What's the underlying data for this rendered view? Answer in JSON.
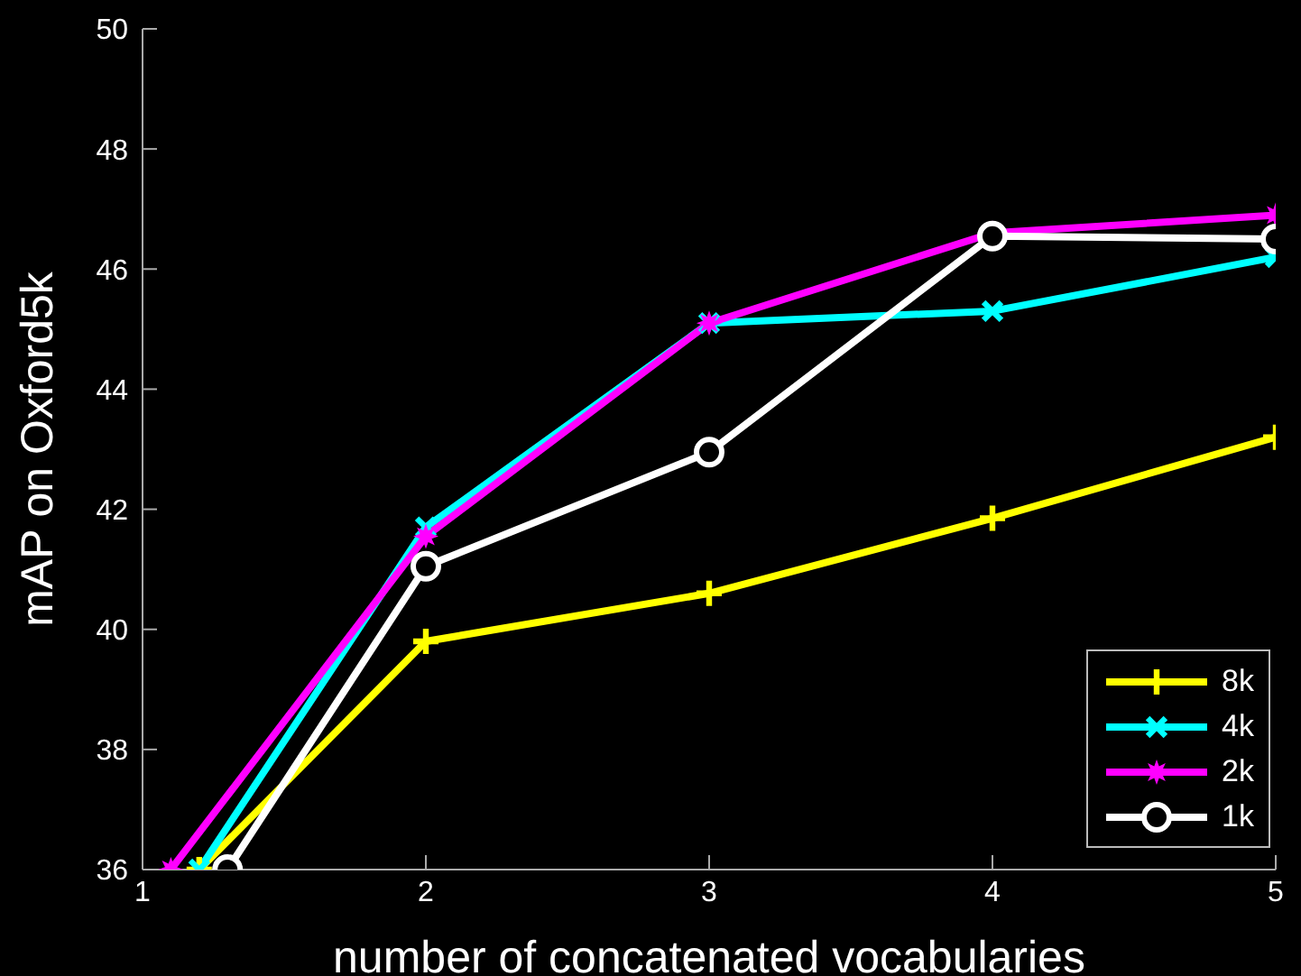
{
  "chart_data": {
    "type": "line",
    "xlabel": "number of concatenated vocabularies",
    "ylabel": "mAP on Oxford5k",
    "xlim": [
      1,
      5
    ],
    "xticks": [
      1,
      2,
      3,
      4,
      5
    ],
    "ylim": [
      36,
      50
    ],
    "yticks": [
      36,
      38,
      40,
      42,
      44,
      46,
      48,
      50
    ],
    "grid": false,
    "legend": "bottom right",
    "line_style": "solid",
    "series": [
      {
        "name": "8k",
        "color": "#ffff00",
        "marker": "cross",
        "x": [
          1.2,
          2,
          3,
          4,
          5
        ],
        "values": [
          36,
          39.8,
          40.6,
          41.85,
          43.2
        ]
      },
      {
        "name": "4k",
        "color": "#00ffff",
        "marker": "cross",
        "x": [
          1.2,
          2,
          3,
          4,
          5
        ],
        "values": [
          36,
          41.7,
          45.1,
          45.3,
          46.2
        ]
      },
      {
        "name": "2k",
        "color": "#ff00ff",
        "marker": "star",
        "x": [
          1.1,
          2,
          3,
          4,
          5
        ],
        "values": [
          36,
          41.55,
          45.1,
          46.6,
          46.9
        ]
      },
      {
        "name": "1k",
        "color": "#ffffff",
        "marker": "circle",
        "x": [
          1.3,
          2,
          3,
          4,
          5
        ],
        "values": [
          36,
          41.05,
          42.95,
          46.55,
          46.5
        ]
      }
    ]
  }
}
